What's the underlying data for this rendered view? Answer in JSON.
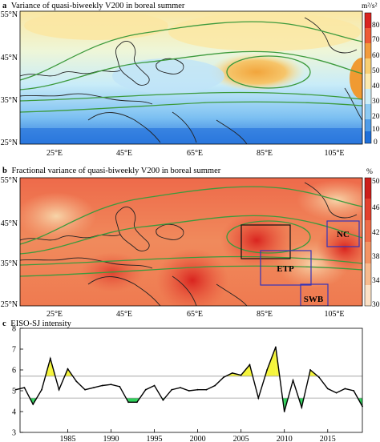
{
  "panels": [
    {
      "letter": "a",
      "title": "Variance of quasi-biweekly V200 in boreal summer",
      "unit_label": "m²/s²",
      "colorbar_ticks": [
        "80",
        "70",
        "60",
        "50",
        "40",
        "30",
        "20",
        "10",
        "0"
      ],
      "lat_labels": [
        "55°N",
        "45°N",
        "35°N",
        "25°N"
      ],
      "lon_labels": [
        "25°E",
        "45°E",
        "65°E",
        "85°E",
        "105°E"
      ]
    },
    {
      "letter": "b",
      "title": "Fractional variance of quasi-biweekly V200 in boreal summer",
      "unit_label": "%",
      "colorbar_ticks": [
        "50",
        "46",
        "42",
        "38",
        "34",
        "30"
      ],
      "lat_labels": [
        "55°N",
        "45°N",
        "35°N",
        "25°N"
      ],
      "lon_labels": [
        "25°E",
        "45°E",
        "65°E",
        "85°E",
        "105°E"
      ],
      "region_labels": [
        "NC",
        "ETP",
        "SWB"
      ]
    }
  ],
  "colors": {
    "blue_dark": "#1e6fd9",
    "blue_mid": "#5aaaf0",
    "blue_light": "#c9ecf8",
    "yellow": "#f9e39a",
    "orange": "#f4a640",
    "red": "#e23a2c",
    "contour": "#3c9a3c",
    "region_box": "#3333bb",
    "highlight_above": "#f5f53c",
    "highlight_below": "#2ed15a"
  },
  "chart_data": {
    "type": "line",
    "letter": "c",
    "title": "EISO-SJ intensity",
    "x": [
      1979,
      1980,
      1981,
      1982,
      1983,
      1984,
      1985,
      1986,
      1987,
      1988,
      1989,
      1990,
      1991,
      1992,
      1993,
      1994,
      1995,
      1996,
      1997,
      1998,
      1999,
      2000,
      2001,
      2002,
      2003,
      2004,
      2005,
      2006,
      2007,
      2008,
      2009,
      2010,
      2011,
      2012,
      2013,
      2014,
      2015,
      2016,
      2017,
      2018,
      2019
    ],
    "y": [
      5.05,
      5.15,
      4.35,
      5.05,
      6.55,
      5.05,
      6.05,
      5.45,
      5.05,
      5.15,
      5.25,
      5.3,
      5.2,
      4.45,
      4.45,
      5.05,
      5.25,
      4.55,
      5.05,
      5.15,
      5.0,
      5.05,
      5.05,
      5.25,
      5.65,
      5.85,
      5.75,
      6.25,
      4.65,
      6.0,
      7.1,
      4.0,
      5.5,
      4.2,
      6.0,
      5.65,
      5.1,
      4.9,
      5.1,
      5.0,
      4.25
    ],
    "upper_threshold": 5.7,
    "lower_threshold": 4.65,
    "ylim": [
      3,
      8
    ],
    "yticks": [
      3,
      4,
      5,
      6,
      7,
      8
    ],
    "xticks": [
      1985,
      1990,
      1995,
      2000,
      2005,
      2010,
      2015
    ],
    "xlim": [
      1979.5,
      2019
    ]
  }
}
